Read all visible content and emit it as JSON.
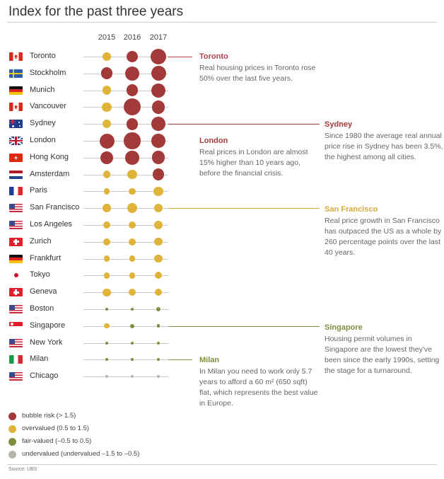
{
  "title": "Index for the past three years",
  "source": "Source: UBS",
  "colors": {
    "bubble_risk": "#a33a3a",
    "overvalued": "#e0b43a",
    "fair_valued": "#7b8f3f",
    "undervalued": "#b8b3ab",
    "toronto_accent": "#b5414a",
    "sydney_accent": "#a33a3a",
    "sanfrancisco_accent": "#d9a93a",
    "singapore_accent": "#7b8f3f",
    "milan_accent": "#7b8f3f"
  },
  "chart_data": {
    "type": "bubble-matrix",
    "years": [
      "2015",
      "2016",
      "2017"
    ],
    "categories_legend": [
      {
        "key": "bubble_risk",
        "label": "bubble risk  (> 1.5)"
      },
      {
        "key": "overvalued",
        "label": "overvalued (0.5 to 1.5)"
      },
      {
        "key": "fair_valued",
        "label": "fair-valued (–0.5 to 0.5)"
      },
      {
        "key": "undervalued",
        "label": "undervalued (undervalued –1.5 to –0.5)"
      }
    ],
    "cities": [
      {
        "name": "Toronto",
        "flag": "canada-flag-icon",
        "values": [
          {
            "cat": "overvalued",
            "size": 1.1
          },
          {
            "cat": "bubble_risk",
            "size": 1.55
          },
          {
            "cat": "bubble_risk",
            "size": 2.1
          }
        ]
      },
      {
        "name": "Stockholm",
        "flag": "sweden-flag-icon",
        "values": [
          {
            "cat": "bubble_risk",
            "size": 1.6
          },
          {
            "cat": "bubble_risk",
            "size": 1.95
          },
          {
            "cat": "bubble_risk",
            "size": 2.0
          }
        ]
      },
      {
        "name": "Munich",
        "flag": "germany-flag-icon",
        "values": [
          {
            "cat": "overvalued",
            "size": 1.2
          },
          {
            "cat": "bubble_risk",
            "size": 1.6
          },
          {
            "cat": "bubble_risk",
            "size": 1.9
          }
        ]
      },
      {
        "name": "Vancouver",
        "flag": "canada-flag-icon",
        "values": [
          {
            "cat": "overvalued",
            "size": 1.3
          },
          {
            "cat": "bubble_risk",
            "size": 2.3
          },
          {
            "cat": "bubble_risk",
            "size": 1.75
          }
        ]
      },
      {
        "name": "Sydney",
        "flag": "australia-flag-icon",
        "values": [
          {
            "cat": "overvalued",
            "size": 1.15
          },
          {
            "cat": "bubble_risk",
            "size": 1.6
          },
          {
            "cat": "bubble_risk",
            "size": 1.85
          }
        ]
      },
      {
        "name": "London",
        "flag": "uk-flag-icon",
        "values": [
          {
            "cat": "bubble_risk",
            "size": 2.0
          },
          {
            "cat": "bubble_risk",
            "size": 2.2
          },
          {
            "cat": "bubble_risk",
            "size": 1.85
          }
        ]
      },
      {
        "name": "Hong Kong",
        "flag": "hongkong-flag-icon",
        "values": [
          {
            "cat": "bubble_risk",
            "size": 1.7
          },
          {
            "cat": "bubble_risk",
            "size": 1.85
          },
          {
            "cat": "bubble_risk",
            "size": 1.8
          }
        ]
      },
      {
        "name": "Amsterdam",
        "flag": "netherlands-flag-icon",
        "values": [
          {
            "cat": "overvalued",
            "size": 1.0
          },
          {
            "cat": "overvalued",
            "size": 1.25
          },
          {
            "cat": "bubble_risk",
            "size": 1.6
          }
        ]
      },
      {
        "name": "Paris",
        "flag": "france-flag-icon",
        "values": [
          {
            "cat": "overvalued",
            "size": 0.85
          },
          {
            "cat": "overvalued",
            "size": 0.9
          },
          {
            "cat": "overvalued",
            "size": 1.3
          }
        ]
      },
      {
        "name": "San Francisco",
        "flag": "usa-flag-icon",
        "values": [
          {
            "cat": "overvalued",
            "size": 1.1
          },
          {
            "cat": "overvalued",
            "size": 1.3
          },
          {
            "cat": "overvalued",
            "size": 1.2
          }
        ]
      },
      {
        "name": "Los Angeles",
        "flag": "usa-flag-icon",
        "values": [
          {
            "cat": "overvalued",
            "size": 0.95
          },
          {
            "cat": "overvalued",
            "size": 1.0
          },
          {
            "cat": "overvalued",
            "size": 1.15
          }
        ]
      },
      {
        "name": "Zurich",
        "flag": "switzerland-flag-icon",
        "values": [
          {
            "cat": "overvalued",
            "size": 0.95
          },
          {
            "cat": "overvalued",
            "size": 1.0
          },
          {
            "cat": "overvalued",
            "size": 1.05
          }
        ]
      },
      {
        "name": "Frankfurt",
        "flag": "germany-flag-icon",
        "values": [
          {
            "cat": "overvalued",
            "size": 0.85
          },
          {
            "cat": "overvalued",
            "size": 0.85
          },
          {
            "cat": "overvalued",
            "size": 1.05
          }
        ]
      },
      {
        "name": "Tokyo",
        "flag": "japan-flag-icon",
        "values": [
          {
            "cat": "overvalued",
            "size": 0.8
          },
          {
            "cat": "overvalued",
            "size": 0.85
          },
          {
            "cat": "overvalued",
            "size": 0.95
          }
        ]
      },
      {
        "name": "Geneva",
        "flag": "switzerland-flag-icon",
        "values": [
          {
            "cat": "overvalued",
            "size": 1.05
          },
          {
            "cat": "overvalued",
            "size": 0.95
          },
          {
            "cat": "overvalued",
            "size": 0.95
          }
        ]
      },
      {
        "name": "Boston",
        "flag": "usa-flag-icon",
        "values": [
          {
            "cat": "fair_valued",
            "size": 0.35
          },
          {
            "cat": "fair_valued",
            "size": 0.45
          },
          {
            "cat": "fair_valued",
            "size": 0.65
          }
        ]
      },
      {
        "name": "Singapore",
        "flag": "singapore-flag-icon",
        "values": [
          {
            "cat": "overvalued",
            "size": 0.7
          },
          {
            "cat": "fair_valued",
            "size": 0.6
          },
          {
            "cat": "fair_valued",
            "size": 0.45
          }
        ]
      },
      {
        "name": "New York",
        "flag": "usa-flag-icon",
        "values": [
          {
            "cat": "fair_valued",
            "size": 0.35
          },
          {
            "cat": "fair_valued",
            "size": 0.35
          },
          {
            "cat": "fair_valued",
            "size": 0.35
          }
        ]
      },
      {
        "name": "Milan",
        "flag": "italy-flag-icon",
        "values": [
          {
            "cat": "fair_valued",
            "size": 0.3
          },
          {
            "cat": "fair_valued",
            "size": 0.3
          },
          {
            "cat": "fair_valued",
            "size": 0.25
          }
        ]
      },
      {
        "name": "Chicago",
        "flag": "usa-flag-icon",
        "values": [
          {
            "cat": "undervalued",
            "size": 0.2
          },
          {
            "cat": "undervalued",
            "size": 0.2
          },
          {
            "cat": "undervalued",
            "size": 0.2
          }
        ]
      }
    ]
  },
  "callouts": [
    {
      "city": "Toronto",
      "title": "Toronto",
      "color_key": "toronto_accent",
      "body": "Real housing prices in Toronto rose 50% over the last five years."
    },
    {
      "city": "Sydney",
      "title": "Sydney",
      "color_key": "sydney_accent",
      "body": "Since 1980 the average real annual price rise in Sydney has been 3.5%, the highest among all cities."
    },
    {
      "city": "London",
      "title": "London",
      "color_key": "sydney_accent",
      "body": "Real prices in London are almost 15% higher than 10 years ago, before the financial crisis."
    },
    {
      "city": "San Francisco",
      "title": "San Francisco",
      "color_key": "sanfrancisco_accent",
      "body": "Real price growth in San Francisco has outpaced the US as a whole by 260 percentage points over the last 40 years."
    },
    {
      "city": "Singapore",
      "title": "Singapore",
      "color_key": "singapore_accent",
      "body": "Housing permit volumes in Singapore are the lowest they've been since the early 1990s, setting the stage for a turnaround."
    },
    {
      "city": "Milan",
      "title": "Milan",
      "color_key": "milan_accent",
      "body": "In Milan you need to work only 5.7 years to afford a 60 m² (650 sqft) flat, which represents the best value in Europe."
    }
  ]
}
